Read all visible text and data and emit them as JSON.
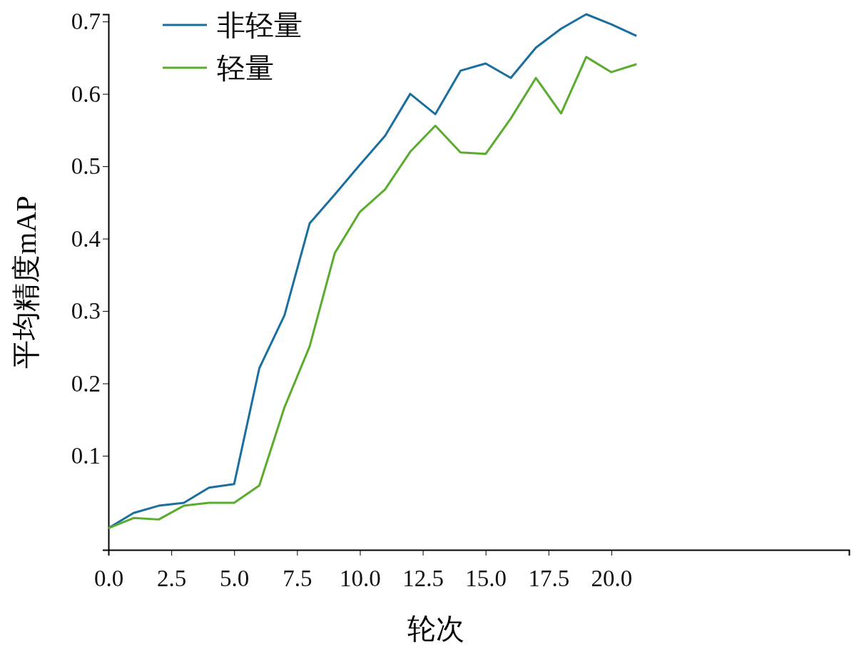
{
  "chart_data": {
    "type": "line",
    "xlabel": "轮次",
    "ylabel": "平均精度mAP",
    "x": [
      0,
      1,
      2,
      3,
      4,
      5,
      6,
      7,
      8,
      9,
      10,
      11,
      12,
      13,
      14,
      15,
      16,
      17,
      18,
      19,
      20,
      21
    ],
    "series": [
      {
        "name": "非轻量",
        "color": "#1a6fa0",
        "values": [
          0.0,
          0.021,
          0.031,
          0.035,
          0.056,
          0.061,
          0.221,
          0.294,
          0.421,
          0.461,
          0.502,
          0.542,
          0.6,
          0.572,
          0.632,
          0.642,
          0.622,
          0.664,
          0.69,
          0.71,
          0.696,
          0.68
        ]
      },
      {
        "name": "轻量",
        "color": "#5aac2e",
        "values": [
          0.0,
          0.014,
          0.012,
          0.031,
          0.035,
          0.035,
          0.059,
          0.167,
          0.251,
          0.38,
          0.437,
          0.468,
          0.52,
          0.556,
          0.519,
          0.517,
          0.566,
          0.622,
          0.573,
          0.651,
          0.63,
          0.641
        ]
      }
    ],
    "xlim": [
      0,
      29.45
    ],
    "ylim": [
      -0.03,
      0.71
    ],
    "xticks": [
      {
        "value": 0,
        "label": "0.0"
      },
      2.5,
      {
        "value": 5,
        "label": "5.0"
      },
      7.5,
      {
        "value": 10,
        "label": "10.0"
      },
      12.5,
      {
        "value": 15,
        "label": "15.0"
      },
      17.5,
      {
        "value": 20,
        "label": "20.0"
      }
    ],
    "yticks": [
      0.1,
      0.2,
      0.3,
      0.4,
      0.5,
      0.6,
      0.7
    ],
    "legend": "top left",
    "marker": "none",
    "line_style": "solid",
    "grid": false
  }
}
